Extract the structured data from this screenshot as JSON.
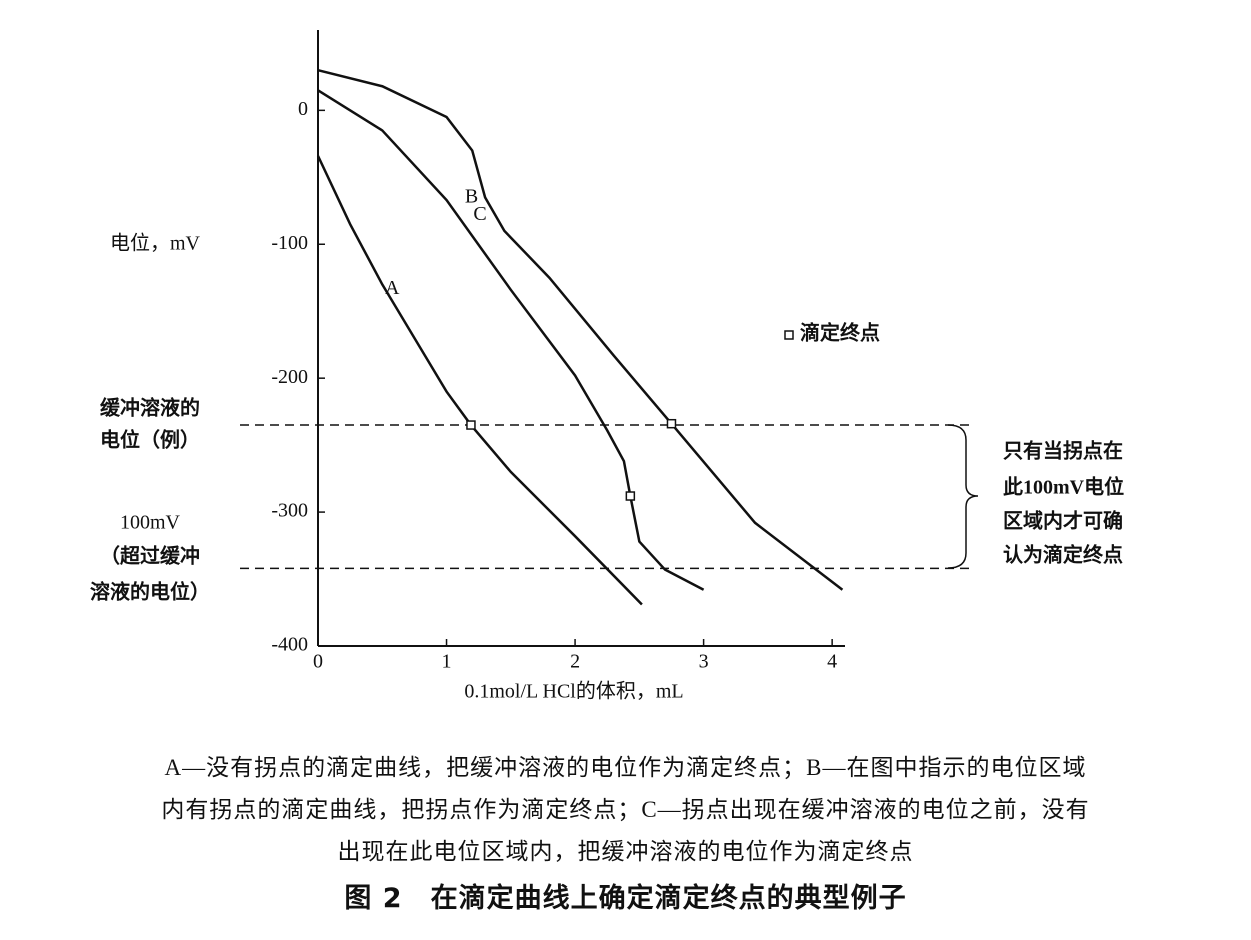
{
  "chart_data": {
    "type": "line",
    "y_label": "电位，mV",
    "x_label": "0.1mol/L HCl的体积，mL",
    "xlim": [
      0,
      4.1
    ],
    "xticks": [
      0,
      1,
      2,
      3,
      4
    ],
    "ylim": [
      -400,
      60
    ],
    "yticks": [
      0,
      -100,
      -200,
      -300,
      -400
    ],
    "color": "#111111",
    "series": [
      {
        "name": "A",
        "x": [
          0,
          0.25,
          0.5,
          0.75,
          1.0,
          1.19,
          1.5,
          2.0,
          2.52
        ],
        "values": [
          -34,
          -85,
          -130,
          -170,
          -210,
          -235,
          -270,
          -318,
          -369
        ]
      },
      {
        "name": "B",
        "x": [
          0,
          0.5,
          1.0,
          1.5,
          2.0,
          2.25,
          2.38,
          2.43,
          2.5,
          2.7,
          3.0
        ],
        "values": [
          15,
          -15,
          -67,
          -134,
          -198,
          -239,
          -262,
          -288,
          -322,
          -343,
          -358
        ]
      },
      {
        "name": "C",
        "x": [
          0,
          0.5,
          1.0,
          1.2,
          1.3,
          1.45,
          1.8,
          2.3,
          2.75,
          3.4,
          4.08
        ],
        "values": [
          30,
          18,
          -5,
          -30,
          -65,
          -90,
          -125,
          -183,
          -234,
          -308,
          -358
        ]
      }
    ],
    "endpoint_markers": [
      {
        "x": 1.19,
        "y": -235
      },
      {
        "x": 2.43,
        "y": -288
      },
      {
        "x": 2.75,
        "y": -234
      }
    ],
    "marker_legend": "滴定终点",
    "reference_lines": [
      -235,
      -342
    ],
    "upper_note": [
      "缓冲溶液的",
      "电位（例）"
    ],
    "lower_note": [
      "100mV",
      "（超过缓冲",
      "溶液的电位）"
    ],
    "brace_note": [
      "只有当拐点在",
      "此100mV电位",
      "区域内才可确",
      "认为滴定终点"
    ],
    "caption": [
      "A—没有拐点的滴定曲线，把缓冲溶液的电位作为滴定终点；B—在图中指示的电位区域",
      "内有拐点的滴定曲线，把拐点作为滴定终点；C—拐点出现在缓冲溶液的电位之前，没有",
      "出现在此电位区域内，把缓冲溶液的电位作为滴定终点"
    ],
    "figure_title": "图 2　在滴定曲线上确定滴定终点的典型例子"
  }
}
